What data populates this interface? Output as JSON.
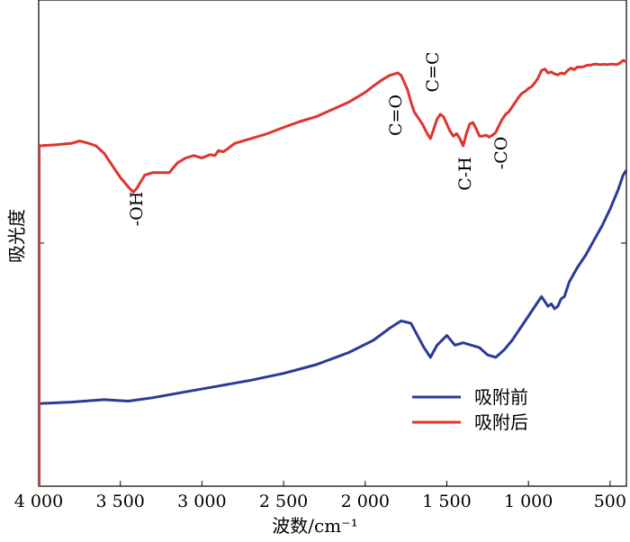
{
  "chart_data": {
    "type": "line",
    "xlabel": "波数/cm⁻¹",
    "ylabel": "吸光度",
    "xlim": [
      4000,
      400
    ],
    "x_reversed": true,
    "ylim": [
      0,
      1
    ],
    "y_ticks_labeled": false,
    "grid": false,
    "legend_position": "bottom-right",
    "x_ticks": [
      4000,
      3500,
      3000,
      2500,
      2000,
      1500,
      1000,
      500
    ],
    "x_tick_labels": [
      "4 000",
      "3 500",
      "3 000",
      "2 500",
      "2 000",
      "1 500",
      "1 000",
      "500"
    ],
    "series": [
      {
        "name": "吸附前",
        "color": "#2a3a9a",
        "x": [
          4000,
          3800,
          3600,
          3450,
          3300,
          3100,
          2900,
          2700,
          2500,
          2300,
          2100,
          1950,
          1850,
          1780,
          1720,
          1680,
          1640,
          1600,
          1560,
          1500,
          1450,
          1400,
          1350,
          1300,
          1250,
          1200,
          1150,
          1100,
          1050,
          1000,
          950,
          920,
          900,
          880,
          860,
          840,
          820,
          800,
          780,
          750,
          700,
          650,
          600,
          550,
          500,
          450,
          420,
          400
        ],
        "y": [
          0.17,
          0.173,
          0.178,
          0.175,
          0.182,
          0.194,
          0.206,
          0.218,
          0.232,
          0.25,
          0.275,
          0.3,
          0.325,
          0.34,
          0.335,
          0.31,
          0.285,
          0.265,
          0.29,
          0.31,
          0.29,
          0.295,
          0.29,
          0.285,
          0.27,
          0.265,
          0.28,
          0.3,
          0.325,
          0.35,
          0.375,
          0.39,
          0.38,
          0.37,
          0.375,
          0.365,
          0.37,
          0.385,
          0.39,
          0.42,
          0.45,
          0.475,
          0.505,
          0.535,
          0.57,
          0.61,
          0.64,
          0.65
        ],
        "line_width": 3
      },
      {
        "name": "吸附后",
        "color": "#e0342e",
        "x": [
          4000,
          3900,
          3800,
          3750,
          3700,
          3650,
          3600,
          3550,
          3500,
          3450,
          3420,
          3400,
          3350,
          3300,
          3250,
          3200,
          3150,
          3100,
          3050,
          3000,
          2950,
          2920,
          2900,
          2870,
          2850,
          2800,
          2700,
          2600,
          2500,
          2400,
          2300,
          2200,
          2100,
          2000,
          1950,
          1900,
          1850,
          1800,
          1780,
          1760,
          1740,
          1720,
          1700,
          1680,
          1650,
          1620,
          1600,
          1580,
          1560,
          1540,
          1520,
          1500,
          1480,
          1460,
          1440,
          1420,
          1400,
          1380,
          1360,
          1340,
          1320,
          1300,
          1280,
          1260,
          1240,
          1220,
          1200,
          1180,
          1160,
          1140,
          1120,
          1100,
          1080,
          1060,
          1040,
          1020,
          1000,
          980,
          960,
          940,
          920,
          900,
          880,
          860,
          840,
          820,
          800,
          780,
          760,
          740,
          720,
          700,
          680,
          660,
          640,
          620,
          600,
          580,
          560,
          540,
          520,
          500,
          480,
          460,
          440,
          420,
          400
        ],
        "y": [
          0.7,
          0.702,
          0.705,
          0.71,
          0.706,
          0.7,
          0.685,
          0.66,
          0.635,
          0.615,
          0.605,
          0.612,
          0.64,
          0.645,
          0.645,
          0.645,
          0.665,
          0.675,
          0.68,
          0.675,
          0.682,
          0.68,
          0.69,
          0.688,
          0.692,
          0.705,
          0.715,
          0.725,
          0.738,
          0.75,
          0.76,
          0.775,
          0.79,
          0.81,
          0.823,
          0.835,
          0.845,
          0.85,
          0.845,
          0.83,
          0.815,
          0.79,
          0.77,
          0.76,
          0.745,
          0.725,
          0.715,
          0.735,
          0.755,
          0.765,
          0.76,
          0.745,
          0.73,
          0.72,
          0.725,
          0.715,
          0.7,
          0.725,
          0.745,
          0.748,
          0.735,
          0.72,
          0.72,
          0.722,
          0.718,
          0.722,
          0.728,
          0.742,
          0.755,
          0.765,
          0.77,
          0.78,
          0.79,
          0.8,
          0.808,
          0.812,
          0.818,
          0.822,
          0.83,
          0.84,
          0.855,
          0.858,
          0.85,
          0.852,
          0.848,
          0.846,
          0.85,
          0.848,
          0.855,
          0.86,
          0.857,
          0.862,
          0.862,
          0.863,
          0.866,
          0.866,
          0.868,
          0.868,
          0.867,
          0.868,
          0.867,
          0.868,
          0.868,
          0.867,
          0.87,
          0.876,
          0.873
        ],
        "line_width": 3
      }
    ],
    "annotations": [
      {
        "text": "-OH",
        "x": 3430,
        "rotated": true
      },
      {
        "text": "C=O",
        "x": 1800,
        "rotated": true
      },
      {
        "text": "C=C",
        "x": 1630,
        "rotated": true
      },
      {
        "text": "C-H",
        "x": 1470,
        "rotated": true
      },
      {
        "text": "-CO",
        "x": 1200,
        "rotated": true
      }
    ]
  }
}
